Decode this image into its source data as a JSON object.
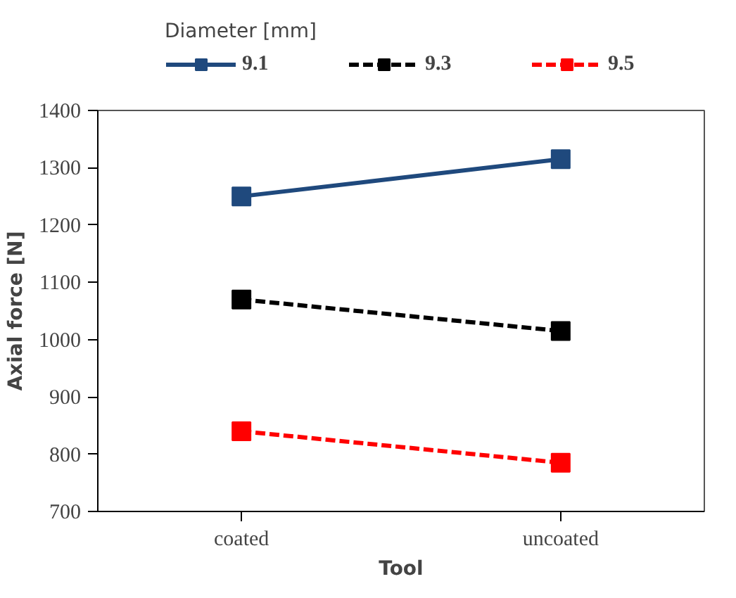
{
  "chart_data": {
    "type": "line",
    "legend_title": "Diameter [mm]",
    "xlabel": "Tool",
    "ylabel": "Axial force [N]",
    "categories": [
      "coated",
      "uncoated"
    ],
    "series": [
      {
        "name": "9.1",
        "color": "#1f497d",
        "values": [
          1250,
          1315
        ],
        "line_style": "solid"
      },
      {
        "name": "9.3",
        "color": "#000000",
        "values": [
          1070,
          1015
        ],
        "line_style": "dashed"
      },
      {
        "name": "9.5",
        "color": "#ff0000",
        "values": [
          840,
          785
        ],
        "line_style": "dashed"
      }
    ],
    "ylim": [
      700,
      1400
    ],
    "yticks": [
      700,
      800,
      900,
      1000,
      1100,
      1200,
      1300,
      1400
    ],
    "marker": "square",
    "legend": "top",
    "grid": false
  }
}
